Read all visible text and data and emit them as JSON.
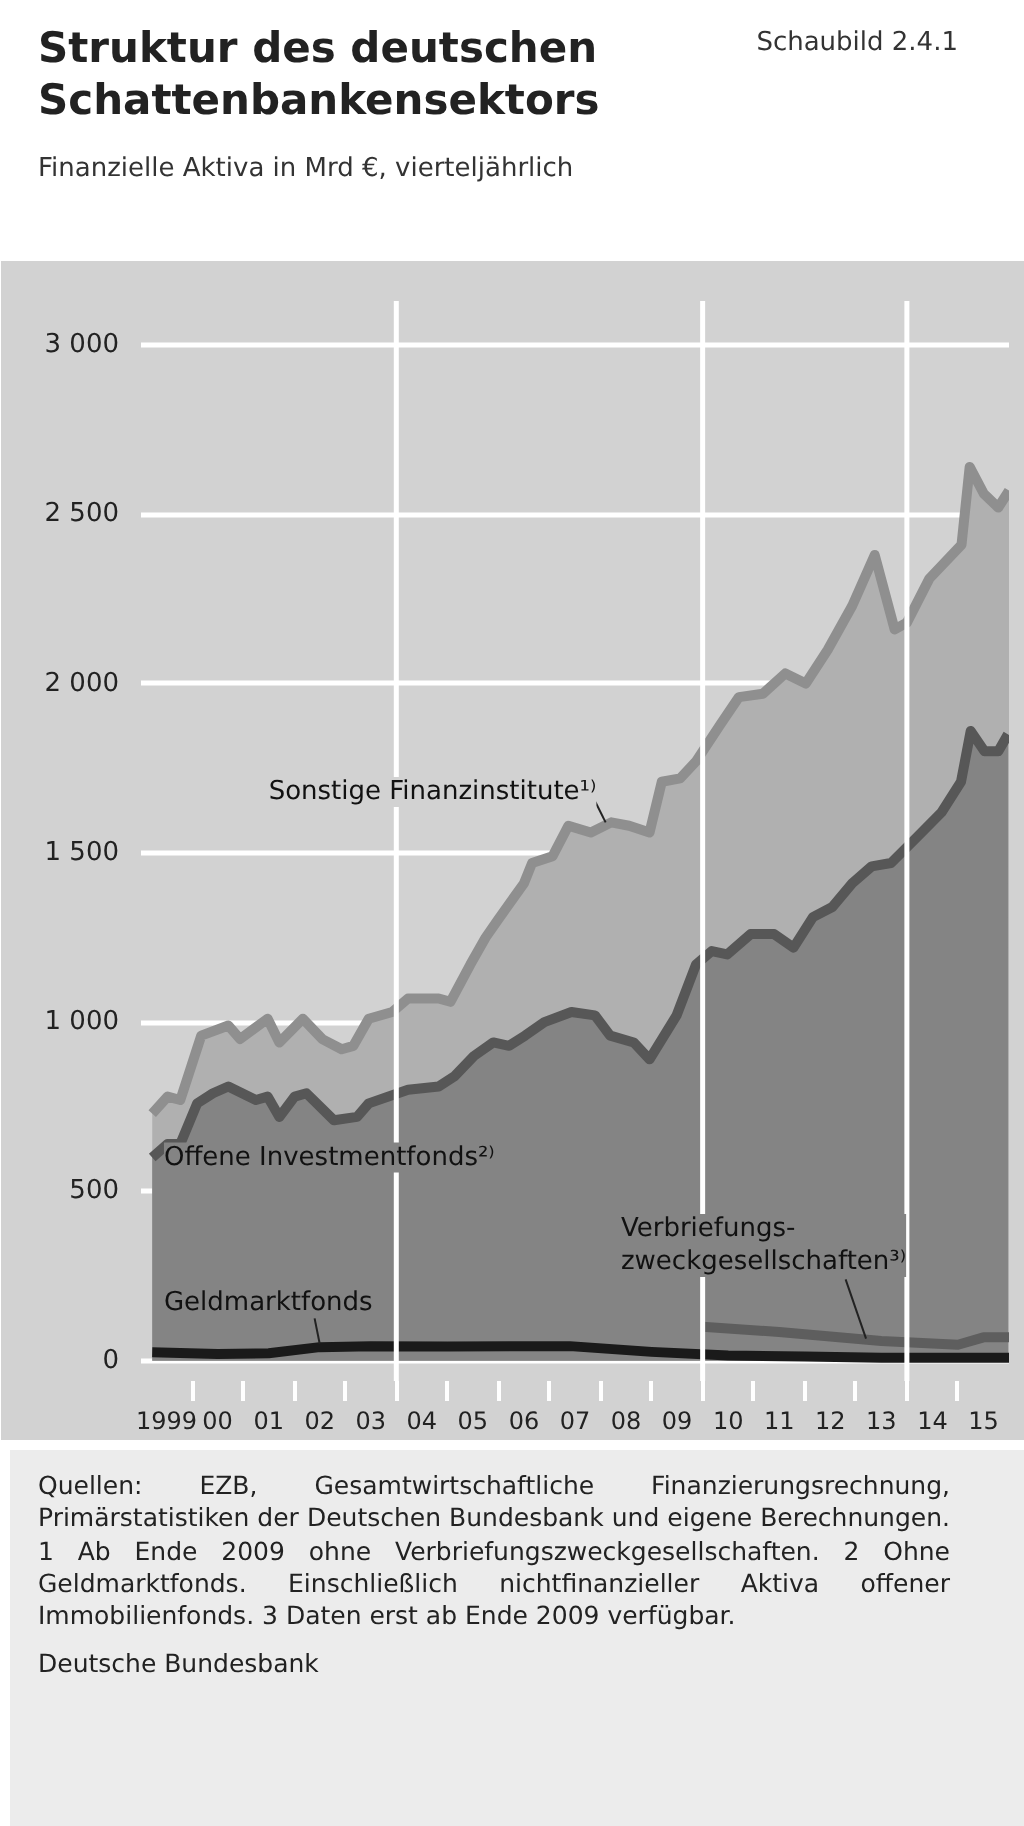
{
  "chart_data": {
    "type": "area",
    "title": "Struktur des deutschen Schattenbankensektors",
    "subtitle": "Finanzielle Aktiva in Mrd €, vierteljährlich",
    "annotations": [
      "Schaubild 2.4.1",
      "Quellen: EZB, Gesamtwirtschaftliche Finanzierungsrechnung, Primärstatistiken der Deutschen Bundesbank und eigene Berechnungen. 1 Ab Ende 2009 ohne Verbriefungszweckgesellschaften. 2 Ohne Geldmarktfonds. Einschließlich nichtfinanzieller Aktiva offener Immobilienfonds. 3 Daten erst ab Ende 2009 verfügbar.",
      "Deutsche Bundesbank"
    ],
    "xlim": [
      1998.5,
      2015.5
    ],
    "xticks": [
      1999,
      {
        "value": 2000,
        "label": "00"
      },
      {
        "value": 2001,
        "label": "01"
      },
      {
        "value": 2002,
        "label": "02"
      },
      {
        "value": 2003,
        "label": "03"
      },
      {
        "value": 2004,
        "label": "04"
      },
      {
        "value": 2005,
        "label": "05"
      },
      {
        "value": 2006,
        "label": "06"
      },
      {
        "value": 2007,
        "label": "07"
      },
      {
        "value": 2008,
        "label": "08"
      },
      {
        "value": 2009,
        "label": "09"
      },
      {
        "value": 2010,
        "label": "10"
      },
      {
        "value": 2011,
        "label": "11"
      },
      {
        "value": 2012,
        "label": "12"
      },
      {
        "value": 2013,
        "label": "13"
      },
      {
        "value": 2014,
        "label": "14"
      },
      {
        "value": 2015,
        "label": "15"
      },
      {
        "value": 1999.5,
        "label": null
      },
      {
        "value": 2000.5,
        "label": null
      },
      {
        "value": 2001.5,
        "label": null
      },
      {
        "value": 2002.5,
        "label": null
      },
      {
        "value": 2003.5,
        "label": null
      },
      {
        "value": 2004.5,
        "label": null
      },
      {
        "value": 2005.5,
        "label": null
      },
      {
        "value": 2006.5,
        "label": null
      },
      {
        "value": 2007.5,
        "label": null
      },
      {
        "value": 2008.5,
        "label": null
      },
      {
        "value": 2009.5,
        "label": null
      },
      {
        "value": 2010.5,
        "label": null
      },
      {
        "value": 2011.5,
        "label": null
      },
      {
        "value": 2012.5,
        "label": null
      },
      {
        "value": 2013.5,
        "label": null
      },
      {
        "value": 2014.5,
        "label": null
      }
    ],
    "ylim": [
      -60,
      3130
    ],
    "yticks": [
      0,
      500,
      {
        "value": 1000,
        "label": "1 000"
      },
      {
        "value": 1500,
        "label": "1 500"
      },
      {
        "value": 2000,
        "label": "2 000"
      },
      {
        "value": 2500,
        "label": "2 500"
      },
      {
        "value": 3000,
        "label": "3 000"
      }
    ],
    "grid": "y",
    "ref_lines": [
      {
        "axis": "x",
        "value": 2003.5,
        "color": "#ffffff"
      },
      {
        "axis": "x",
        "value": 2009.5,
        "color": "#ffffff"
      },
      {
        "axis": "x",
        "value": 2013.5,
        "color": "#ffffff"
      }
    ],
    "series": [
      {
        "name": "Sonstige Finanzinstitute¹⁾",
        "color": "#8f8f8f",
        "x": [
          1998.72,
          1999.02,
          1999.27,
          1999.68,
          2000.21,
          2000.44,
          2000.98,
          2001.21,
          2001.67,
          2002.05,
          2002.43,
          2002.66,
          2002.96,
          2003.42,
          2003.73,
          2004.33,
          2004.56,
          2004.95,
          2005.25,
          2005.48,
          2006.0,
          2006.16,
          2006.56,
          2006.87,
          2007.31,
          2007.71,
          2008.06,
          2008.46,
          2008.7,
          2009.06,
          2009.37,
          2009.85,
          2010.21,
          2010.68,
          2011.12,
          2011.52,
          2011.95,
          2012.43,
          2012.87,
          2013.26,
          2013.5,
          2013.94,
          2014.57,
          2014.73,
          2015.01,
          2015.29,
          2015.5
        ],
        "values": [
          730,
          780,
          770,
          960,
          990,
          950,
          1010,
          940,
          1010,
          950,
          920,
          930,
          1010,
          1030,
          1070,
          1070,
          1060,
          1170,
          1250,
          1300,
          1410,
          1470,
          1490,
          1580,
          1560,
          1590,
          1580,
          1560,
          1710,
          1720,
          1770,
          1880,
          1960,
          1970,
          2030,
          2000,
          2100,
          2230,
          2380,
          2160,
          2180,
          2310,
          2410,
          2640,
          2560,
          2520,
          2570
        ]
      },
      {
        "name": "Offene Investmentfonds²⁾",
        "color": "#575757",
        "x": [
          1998.72,
          1999.02,
          1999.27,
          1999.6,
          1999.91,
          2000.21,
          2000.75,
          2000.98,
          2001.21,
          2001.51,
          2001.74,
          2002.28,
          2002.73,
          2002.96,
          2003.73,
          2004.33,
          2004.64,
          2005.02,
          2005.4,
          2005.71,
          2006.02,
          2006.4,
          2006.93,
          2007.39,
          2007.69,
          2008.15,
          2008.46,
          2008.99,
          2009.37,
          2009.68,
          2009.98,
          2010.44,
          2010.9,
          2011.28,
          2011.66,
          2012.04,
          2012.43,
          2012.81,
          2013.19,
          2013.72,
          2014.18,
          2014.56,
          2014.75,
          2015.02,
          2015.29,
          2015.48
        ],
        "values": [
          600,
          640,
          640,
          760,
          790,
          810,
          770,
          780,
          720,
          780,
          790,
          710,
          720,
          760,
          800,
          810,
          840,
          900,
          940,
          930,
          960,
          1000,
          1030,
          1020,
          960,
          940,
          890,
          1020,
          1170,
          1210,
          1200,
          1260,
          1260,
          1220,
          1310,
          1340,
          1410,
          1460,
          1470,
          1550,
          1620,
          1710,
          1860,
          1800,
          1800,
          1850
        ]
      },
      {
        "name": "Geldmarktfonds",
        "type": "line",
        "color": "#1a1a1a",
        "x": [
          1998.72,
          2000.0,
          2001.0,
          2002.0,
          2003.0,
          2004.5,
          2006.9,
          2008.5,
          2010.0,
          2011.5,
          2013.0,
          2015.5
        ],
        "values": [
          25,
          20,
          22,
          40,
          43,
          42,
          43,
          26,
          15,
          12,
          9,
          9
        ]
      },
      {
        "name": "Verbriefungs-\nzweckgesellschaften³⁾",
        "type": "line",
        "color": "#5e5e5e",
        "x": [
          2009.5,
          2011.0,
          2013.0,
          2014.5,
          2015.0,
          2015.5
        ],
        "values": [
          100,
          85,
          58,
          47,
          69,
          69
        ]
      }
    ]
  }
}
